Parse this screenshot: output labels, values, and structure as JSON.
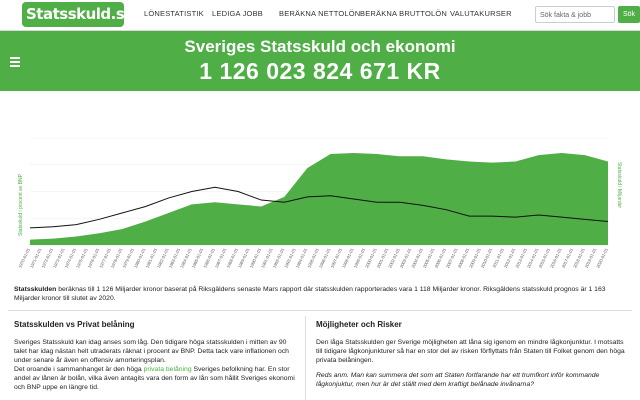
{
  "nav": {
    "logo": "Statsskuld.se",
    "links": [
      "LÖNESTATISTIK",
      "LEDIGA JOBB",
      "BERÄKNA NETTOLÖN",
      "BERÄKNA BRUTTOLÖN",
      "VALUTAKURSER"
    ],
    "search_placeholder": "Sök fakta & jobb",
    "search_button": "Sök"
  },
  "hero": {
    "title": "Sveriges Statsskuld och ekonomi",
    "value": "1 126 023 824 671 KR"
  },
  "chart_data": {
    "type": "area",
    "ylabel_left": "Statsskuld i procent av BNP",
    "ylabel_right": "Statsskuld i Miljarder",
    "x": [
      "1970-01",
      "1972-01",
      "1974-01",
      "1976-01",
      "1978-01",
      "1980-01",
      "1982-01",
      "1984-01",
      "1986-01",
      "1988-01",
      "1990-01",
      "1992-01",
      "1994-01",
      "1996-01",
      "1998-01",
      "2000-01",
      "2002-01",
      "2004-01",
      "2006-01",
      "2008-01",
      "2010-01",
      "2012-01",
      "2014-01",
      "2016-01",
      "2018-01",
      "2020-01"
    ],
    "series": [
      {
        "name": "",
        "values": [
          5,
          6,
          8,
          11,
          15,
          22,
          30,
          38,
          40,
          38,
          36,
          45,
          72,
          85,
          86,
          85,
          83,
          83,
          80,
          78,
          77,
          78,
          84,
          86,
          84,
          78
        ]
      },
      {
        "name": "",
        "values": [
          16,
          17,
          19,
          24,
          30,
          36,
          44,
          50,
          54,
          50,
          42,
          40,
          45,
          46,
          43,
          40,
          40,
          37,
          33,
          27,
          27,
          26,
          28,
          26,
          24,
          22
        ]
      }
    ],
    "xtick_labels": [
      "1970-01-01",
      "1971-01-01",
      "1972-01-01",
      "1973-01-01",
      "1974-01-01",
      "1975-01-01",
      "1976-01-01",
      "1977-01-01",
      "1978-01-01",
      "1979-01-01",
      "1980-01-01",
      "1981-01-01",
      "1982-01-01",
      "1983-01-01",
      "1984-01-01",
      "1985-01-01",
      "1986-01-01",
      "1987-01-01",
      "1988-01-01",
      "1989-01-01",
      "1990-01-01",
      "1991-01-01",
      "1992-01-01",
      "1993-01-01",
      "1994-01-01",
      "1995-01-01",
      "1996-01-01",
      "1997-01-01",
      "1998-01-01",
      "1999-01-01",
      "2000-01-01",
      "2001-01-01",
      "2002-01-01",
      "2003-01-01",
      "2004-01-01",
      "2005-01-01",
      "2006-01-01",
      "2007-01-01",
      "2008-01-01",
      "2009-01-01",
      "2010-01-01",
      "2011-01-01",
      "2012-01-01",
      "2013-01-01",
      "2014-01-01",
      "2015-01-01",
      "2016-01-01",
      "2017-01-01",
      "2018-01-01",
      "2019-01-01",
      "2020-01-01"
    ],
    "colors": {
      "area": "#4fae46",
      "line": "#111111"
    }
  },
  "intro": {
    "bold": "Statsskulden",
    "text": " beräknas till 1 126 Miljarder kronor baserat på Riksgäldens senaste Mars rapport där statsskulden rapporterades vara 1 118 Miljarder kronor. Riksgäldens statsskuld prognos är 1 163 Miljarder kronor till slutet av 2020."
  },
  "left": {
    "heading": "Statsskulden vs Privat belåning",
    "p1": "Sveriges Statsskuld kan idag anses som låg. Den tidigare höga statsskulden i mitten av 90 talet har idag nästan helt utraderats räknat i procent av BNP. Detta tack vare inflationen och under senare år även en offensiv amorteringsplan.",
    "p2a": "Det oroande i sammanhanget är den höga ",
    "p2link": "privata belåning",
    "p2b": " Sveriges befolkning har. En stor andel av lånen är bolån, vilka även antagits vara den form av lån som hållit Sveriges ekonomi och BNP uppe en längre tid."
  },
  "right": {
    "heading": "Möjligheter och Risker",
    "p1": "Den låga Statsskulden ger Sverige möjligheten att låna sig igenom en mindre lågkonjunktur. I motsatts till tidigare lågkonjunkturer så har en stor del av risken förflyttats från Staten till Folket genom den höga privata belåningen.",
    "p2": "Reds anm. Man kan summera det som att Staten fortfarande har ett trumfkort inför kommande lågkonjuktur, men hur är det ställt med dem kraftigt belånade invånarna?"
  }
}
